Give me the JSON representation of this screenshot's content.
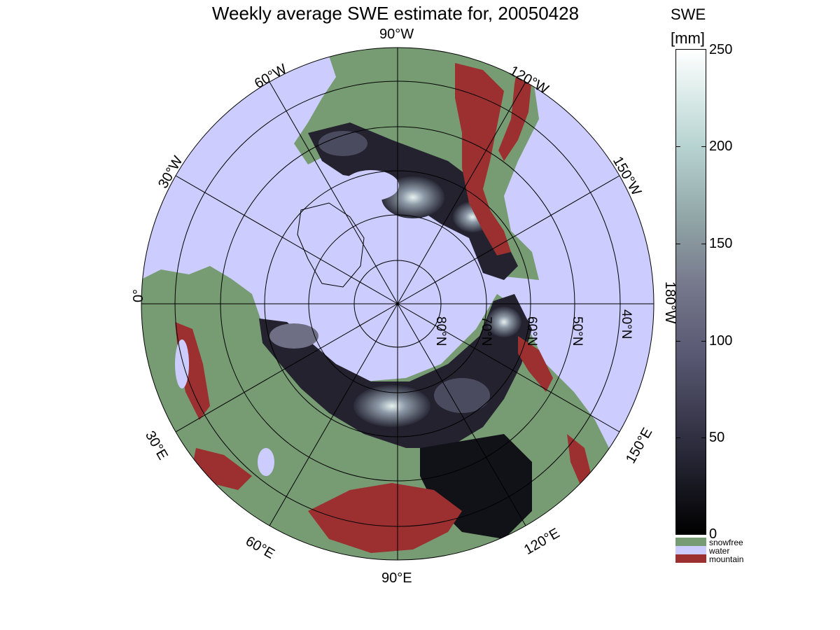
{
  "title": "Weekly average SWE estimate for, 20050428",
  "colorbar": {
    "title_line1": "SWE",
    "title_line2": "[mm]",
    "ticks": [
      "250",
      "200",
      "150",
      "100",
      "50",
      "0"
    ],
    "categories": [
      {
        "label": "snowfree",
        "color": "#779c73"
      },
      {
        "label": "water",
        "color": "#ccccff"
      },
      {
        "label": "mountain",
        "color": "#9c3030"
      }
    ]
  },
  "longitude_labels": {
    "lon_90w": "90°W",
    "lon_120w": "120°W",
    "lon_150w": "150°W",
    "lon_180w": "180°W",
    "lon_150e": "150°E",
    "lon_120e": "120°E",
    "lon_90e": "90°E",
    "lon_60e": "60°E",
    "lon_30e": "30°E",
    "lon_0": "0°",
    "lon_30w": "30°W",
    "lon_60w": "60°W"
  },
  "latitude_labels": [
    "80°N",
    "70°N",
    "60°N",
    "50°N",
    "40°N"
  ],
  "colors": {
    "snowfree": "#779c73",
    "water": "#ccccff",
    "mountain": "#9c3030",
    "snow_low": "#000000",
    "snow_high": "#ffffff"
  }
}
